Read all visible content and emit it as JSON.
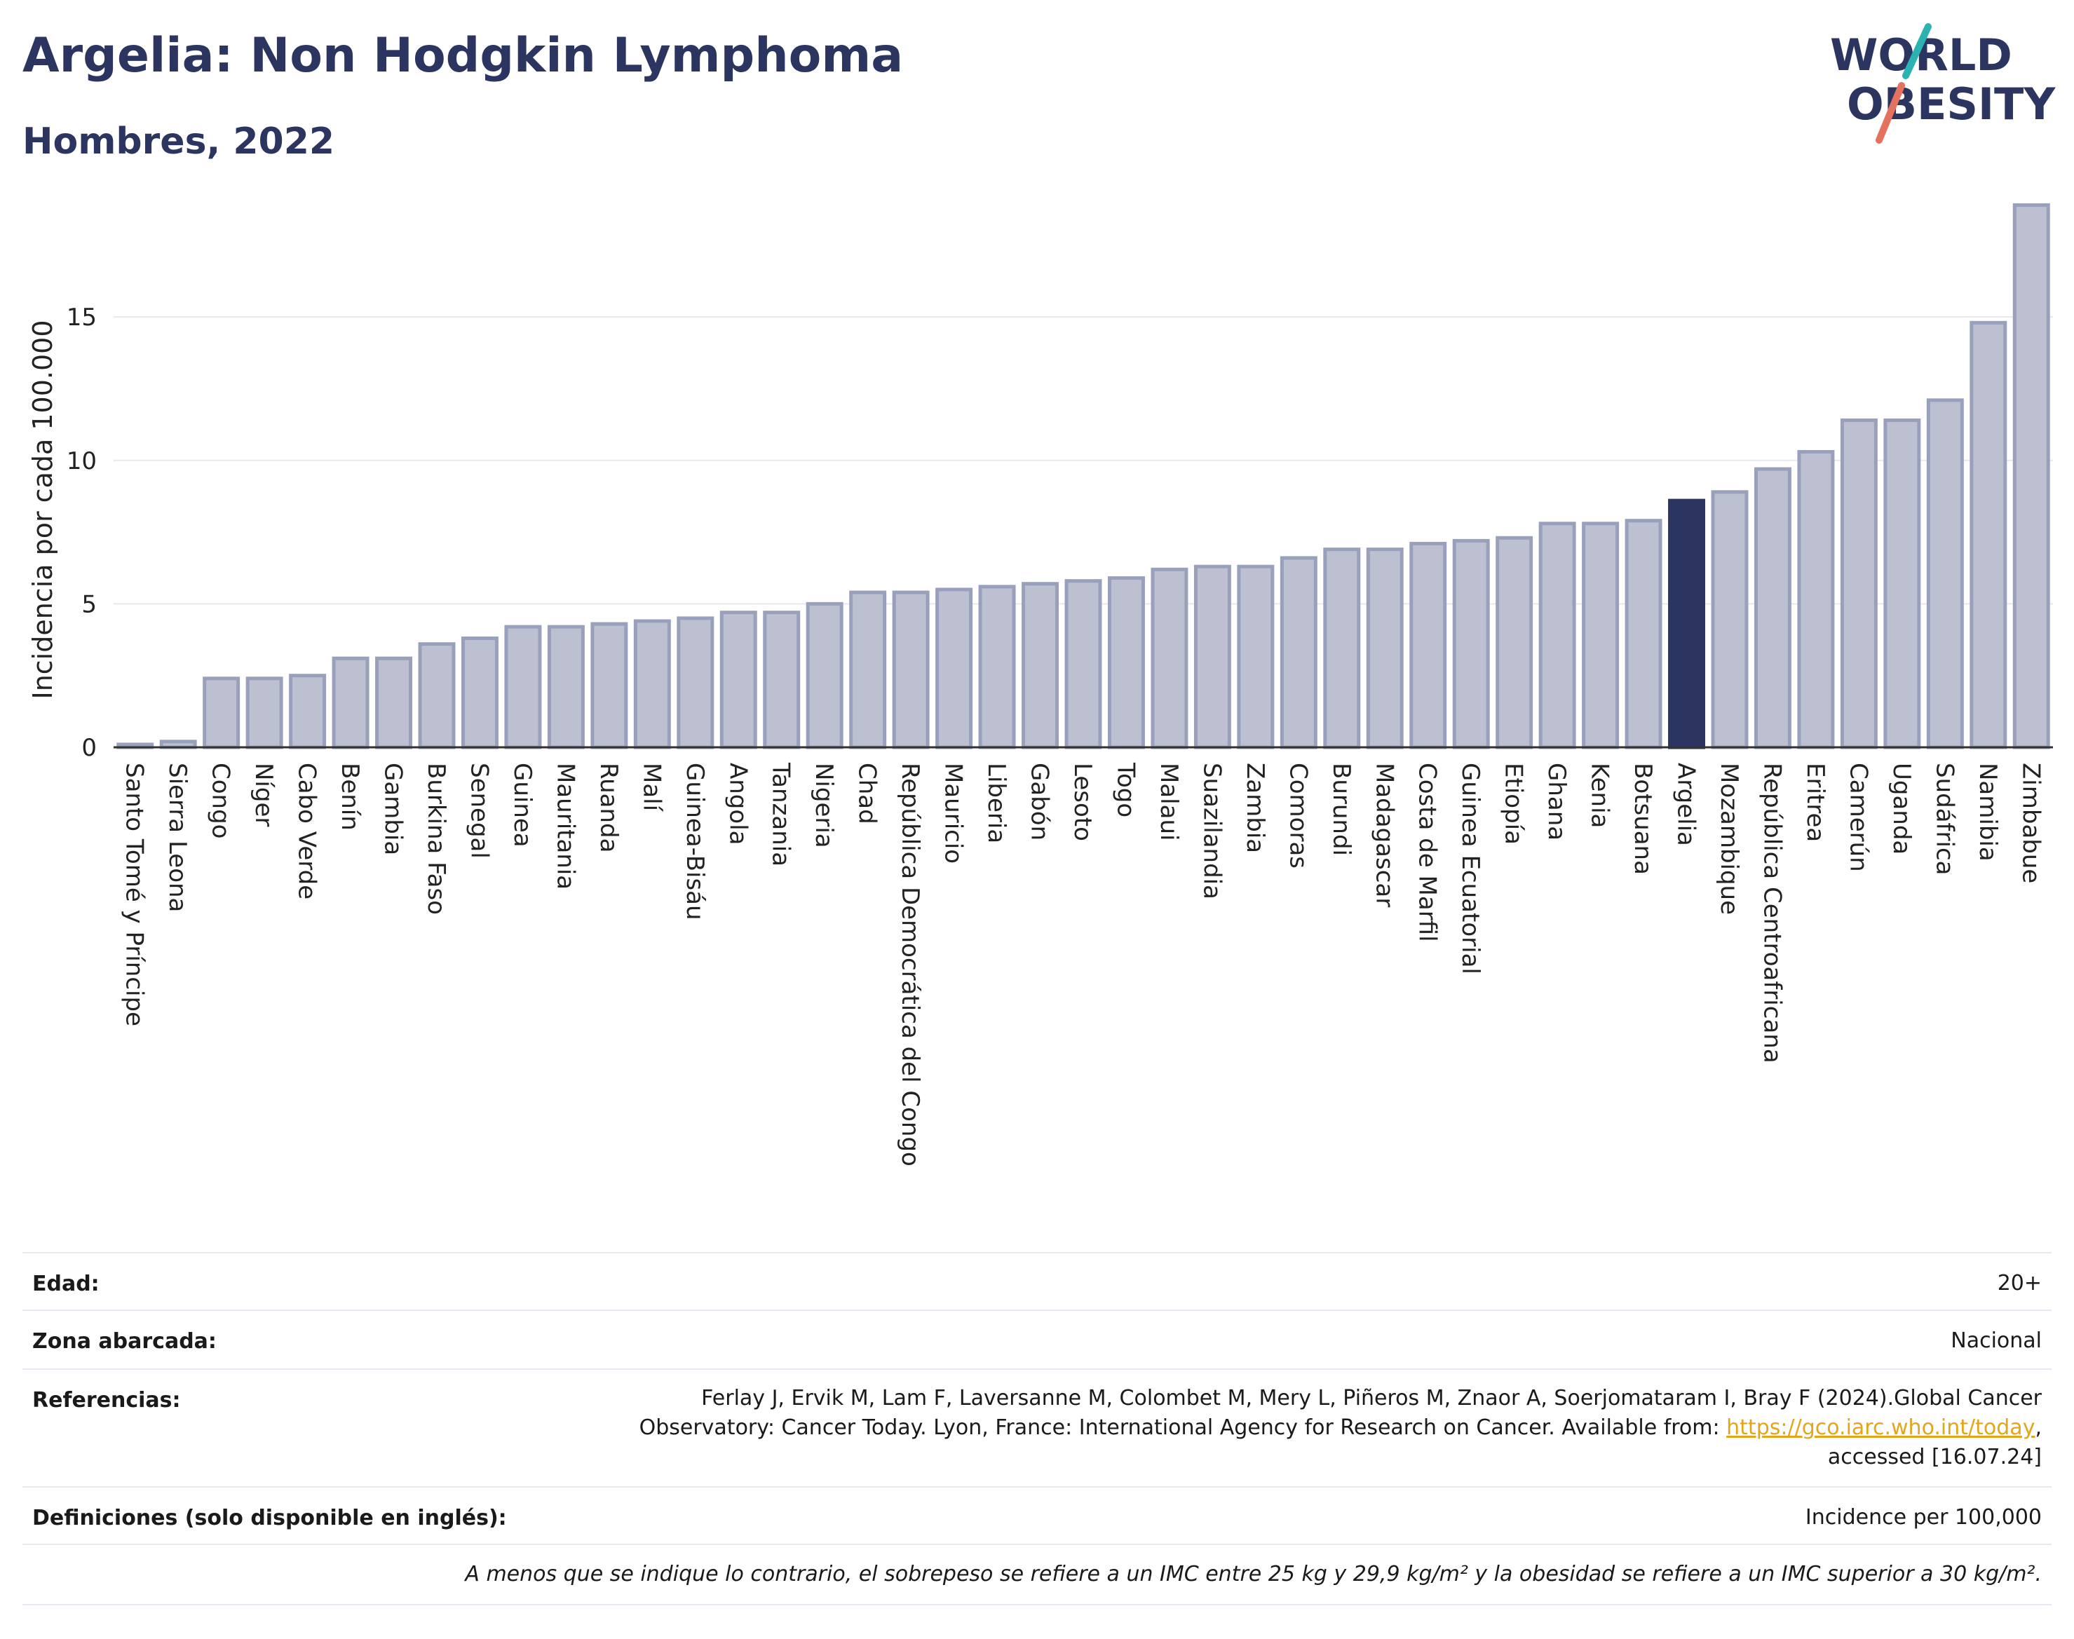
{
  "header": {
    "title": "Argelia: Non Hodgkin Lymphoma",
    "subtitle": "Hombres, 2022",
    "logo_text_line1": "WORLD",
    "logo_text_line2": "OBESITY"
  },
  "colors": {
    "bar": "#bcc0d0",
    "bar_border": "#98a0bc",
    "highlight": "#2b3560",
    "text_dark": "#2b3560",
    "logo_teal": "#2bb3b1",
    "logo_coral": "#e5725e",
    "link": "#e3a61b"
  },
  "chart_data": {
    "type": "bar",
    "title": "Argelia: Non Hodgkin Lymphoma",
    "ylabel": "Incidencia por cada 100.000",
    "xlabel": "",
    "ylim": [
      0,
      19.5
    ],
    "yticks": [
      0,
      5,
      10,
      15
    ],
    "grid": true,
    "highlight": "Argelia",
    "categories": [
      "Santo Tomé y Príncipe",
      "Sierra Leona",
      "Congo",
      "Níger",
      "Cabo Verde",
      "Benín",
      "Gambia",
      "Burkina Faso",
      "Senegal",
      "Guinea",
      "Mauritania",
      "Ruanda",
      "Malí",
      "Guinea-Bisáu",
      "Angola",
      "Tanzania",
      "Nigeria",
      "Chad",
      "República Democrática del Congo",
      "Mauricio",
      "Liberia",
      "Gabón",
      "Lesoto",
      "Togo",
      "Malaui",
      "Suazilandia",
      "Zambia",
      "Comoras",
      "Burundi",
      "Madagascar",
      "Costa de Marfil",
      "Guinea Ecuatorial",
      "Etiopía",
      "Ghana",
      "Kenia",
      "Botsuana",
      "Argelia",
      "Mozambique",
      "República Centroafricana",
      "Eritrea",
      "Camerún",
      "Uganda",
      "Sudáfrica",
      "Namibia",
      "Zimbabue"
    ],
    "values": [
      0.1,
      0.2,
      2.4,
      2.4,
      2.5,
      3.1,
      3.1,
      3.6,
      3.8,
      4.2,
      4.2,
      4.3,
      4.4,
      4.5,
      4.7,
      4.7,
      5.0,
      5.4,
      5.4,
      5.5,
      5.6,
      5.7,
      5.8,
      5.9,
      6.2,
      6.3,
      6.3,
      6.6,
      6.9,
      6.9,
      7.1,
      7.2,
      7.3,
      7.8,
      7.8,
      7.9,
      8.6,
      8.9,
      9.7,
      10.3,
      11.4,
      11.4,
      12.1,
      14.8,
      18.9
    ]
  },
  "meta": {
    "age_label": "Edad:",
    "age_value": "20+",
    "zone_label": "Zona abarcada:",
    "zone_value": "Nacional",
    "refs_label": "Referencias:",
    "refs_line1": "Ferlay J, Ervik M, Lam F, Laversanne M, Colombet M, Mery L, Piñeros M, Znaor A, Soerjomataram I, Bray F (2024).Global Cancer",
    "refs_line2_prefix": "Observatory: Cancer Today. Lyon, France: International Agency for Research on Cancer. Available from: ",
    "refs_link": "https://gco.iarc.who.int/today",
    "refs_line2_suffix": ",",
    "refs_line3": "accessed [16.07.24]",
    "defs_label": "Definiciones (solo disponible en inglés):",
    "defs_value": "Incidence per 100,000",
    "note": "A menos que se indique lo contrario, el sobrepeso se refiere a un IMC entre 25 kg y 29,9 kg/m² y la obesidad se refiere a un IMC superior a 30 kg/m²."
  }
}
